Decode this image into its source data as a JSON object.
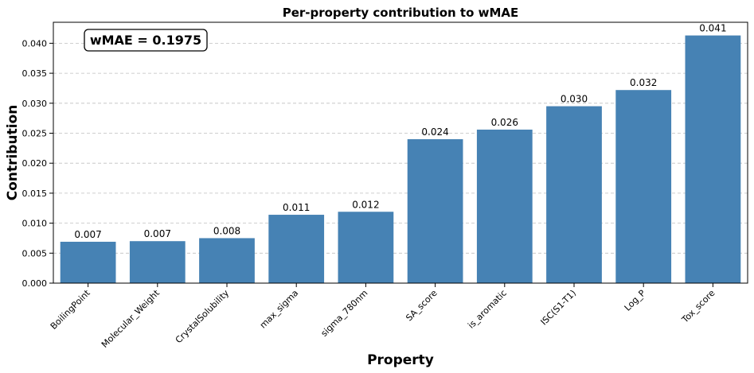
{
  "chart_data": {
    "type": "bar",
    "title": "Per-property contribution to wMAE",
    "xlabel": "Property",
    "ylabel": "Contribution",
    "categories": [
      "BoilingPoint",
      "Molecular_Weight",
      "CrystalSolubility",
      "max_sigma",
      "sigma_780nm",
      "SA_score",
      "is_aromatic",
      "ISC(S1-T1)",
      "Log_P",
      "Tox_score"
    ],
    "values": [
      0.0069,
      0.007,
      0.0075,
      0.0114,
      0.0119,
      0.024,
      0.0256,
      0.0295,
      0.0322,
      0.0413
    ],
    "data_labels": [
      "0.007",
      "0.007",
      "0.008",
      "0.011",
      "0.012",
      "0.024",
      "0.026",
      "0.030",
      "0.032",
      "0.041"
    ],
    "ylim": [
      0,
      0.0435
    ],
    "yticks": [
      0.0,
      0.005,
      0.01,
      0.015,
      0.02,
      0.025,
      0.03,
      0.035,
      0.04
    ],
    "ytick_labels": [
      "0.000",
      "0.005",
      "0.010",
      "0.015",
      "0.020",
      "0.025",
      "0.030",
      "0.035",
      "0.040"
    ],
    "grid": "y-dashed",
    "bar_color": "#4682b4",
    "annotation": "wMAE = 0.1975"
  }
}
